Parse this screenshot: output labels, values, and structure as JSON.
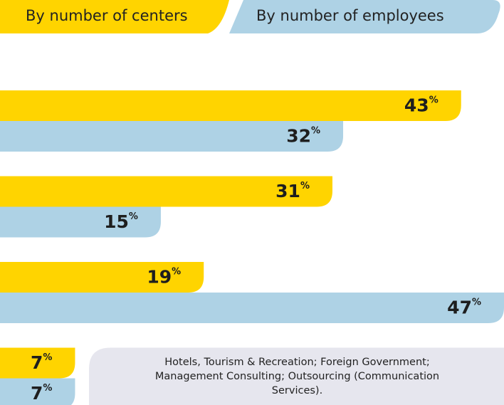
{
  "chart_data": {
    "type": "bar",
    "orientation": "horizontal",
    "categories": [
      null,
      null,
      null,
      "Hotels, Tourism & Recreation; Foreign Government; Management Consulting; Outsourcing (Communication Services)."
    ],
    "series": [
      {
        "name": "By number of centers",
        "color": "#ffd400",
        "values": [
          43,
          31,
          19,
          7
        ]
      },
      {
        "name": "By number of employees",
        "color": "#aed2e5",
        "values": [
          32,
          15,
          47,
          7
        ]
      }
    ],
    "unit": "%",
    "xlim": [
      0,
      47
    ]
  }
}
